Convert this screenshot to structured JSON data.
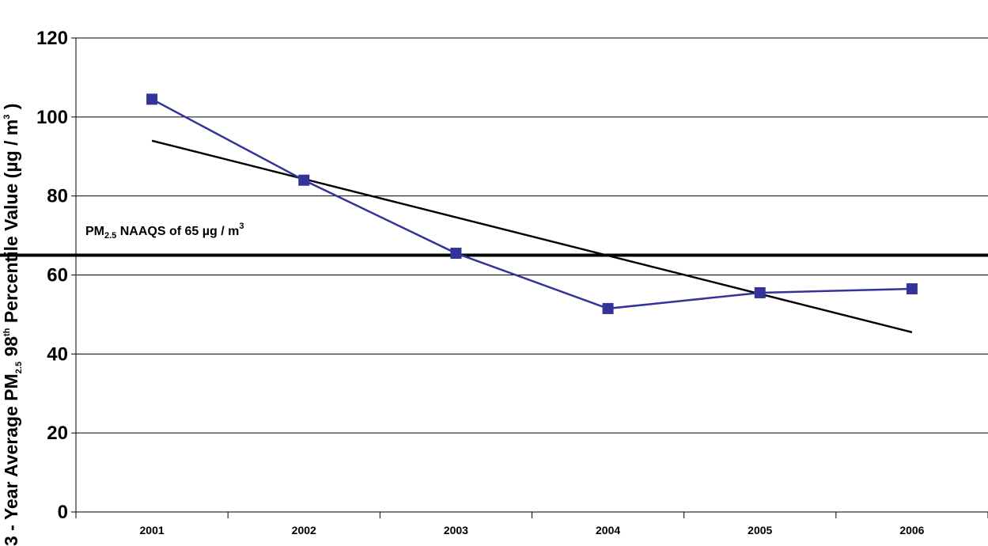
{
  "chart_data": {
    "type": "line",
    "categories": [
      "2001",
      "2002",
      "2003",
      "2004",
      "2005",
      "2006"
    ],
    "series": [
      {
        "values": [
          104.5,
          84,
          65.5,
          51.5,
          55.5,
          56.5
        ]
      }
    ],
    "trendline": {
      "start": 94,
      "end": 45.5
    },
    "reference_line": {
      "value": 65
    },
    "ylim": [
      0,
      120
    ],
    "yticks": [
      0,
      20,
      40,
      60,
      80,
      100,
      120
    ],
    "grid": true,
    "ylabel": {
      "part1": "3 - Year Average PM",
      "sub": "2.5",
      "part2": " 98",
      "sup": "th",
      "part3": " Percentile Value (µg / m",
      "sup2": "3",
      "part4": " )"
    },
    "annotation": {
      "part1": "PM",
      "sub": "2.5",
      "part2": " NAAQS of 65 µg / m",
      "sup": "3"
    },
    "colors": {
      "series": "#33339a",
      "marker": "#33339a",
      "trendline": "#000000",
      "reference": "#000000"
    }
  }
}
